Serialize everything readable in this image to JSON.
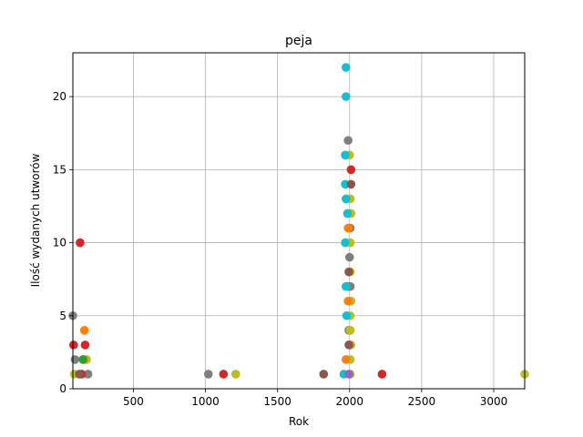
{
  "chart_data": {
    "type": "scatter",
    "title": "peja",
    "xlabel": "Rok",
    "ylabel": "Ilość wydanych utworów",
    "xlim": [
      80,
      3215
    ],
    "ylim": [
      0,
      23
    ],
    "xticks": [
      500,
      1000,
      1500,
      2000,
      2500,
      3000
    ],
    "yticks": [
      0,
      5,
      10,
      15,
      20
    ],
    "grid": true,
    "palette": [
      "#1f77b4",
      "#ff7f0e",
      "#2ca02c",
      "#d62728",
      "#9467bd",
      "#8c564b",
      "#e377c2",
      "#7f7f7f",
      "#bcbd22",
      "#17becf"
    ],
    "series": [
      {
        "color": "#7f7f7f",
        "points": [
          [
            80,
            5
          ],
          [
            95,
            2
          ],
          [
            185,
            1
          ],
          [
            1020,
            1
          ],
          [
            1990,
            17
          ],
          [
            1990,
            7
          ],
          [
            1995,
            4
          ],
          [
            2000,
            9
          ],
          [
            2005,
            11
          ],
          [
            2005,
            7
          ]
        ]
      },
      {
        "color": "#d62728",
        "points": [
          [
            85,
            3
          ],
          [
            130,
            10
          ],
          [
            165,
            3
          ],
          [
            140,
            1
          ],
          [
            1125,
            1
          ],
          [
            2010,
            15
          ],
          [
            2000,
            3
          ],
          [
            2225,
            1
          ]
        ]
      },
      {
        "color": "#bcbd22",
        "points": [
          [
            90,
            1
          ],
          [
            175,
            2
          ],
          [
            1210,
            1
          ],
          [
            2000,
            16
          ],
          [
            2005,
            13
          ],
          [
            2010,
            12
          ],
          [
            2005,
            10
          ],
          [
            2005,
            8
          ],
          [
            2010,
            6
          ],
          [
            2005,
            5
          ],
          [
            2005,
            4
          ],
          [
            2010,
            3
          ],
          [
            2005,
            2
          ],
          [
            2005,
            1
          ],
          [
            3215,
            1
          ]
        ]
      },
      {
        "color": "#17becf",
        "points": [
          [
            1975,
            22
          ],
          [
            1975,
            20
          ],
          [
            1970,
            16
          ],
          [
            1970,
            14
          ],
          [
            1975,
            13
          ],
          [
            1985,
            12
          ],
          [
            1970,
            10
          ],
          [
            1975,
            7
          ],
          [
            1980,
            5
          ],
          [
            1960,
            1
          ]
        ]
      },
      {
        "color": "#ff7f0e",
        "points": [
          [
            160,
            4
          ],
          [
            155,
            2
          ],
          [
            1990,
            11
          ],
          [
            1990,
            6
          ],
          [
            1975,
            2
          ]
        ]
      },
      {
        "color": "#8c564b",
        "points": [
          [
            1820,
            1
          ],
          [
            2010,
            14
          ],
          [
            1995,
            8
          ],
          [
            1995,
            3
          ],
          [
            125,
            1
          ]
        ]
      },
      {
        "color": "#2ca02c",
        "points": [
          [
            150,
            2
          ]
        ]
      },
      {
        "color": "#9467bd",
        "points": [
          [
            1995,
            1
          ]
        ]
      }
    ]
  }
}
